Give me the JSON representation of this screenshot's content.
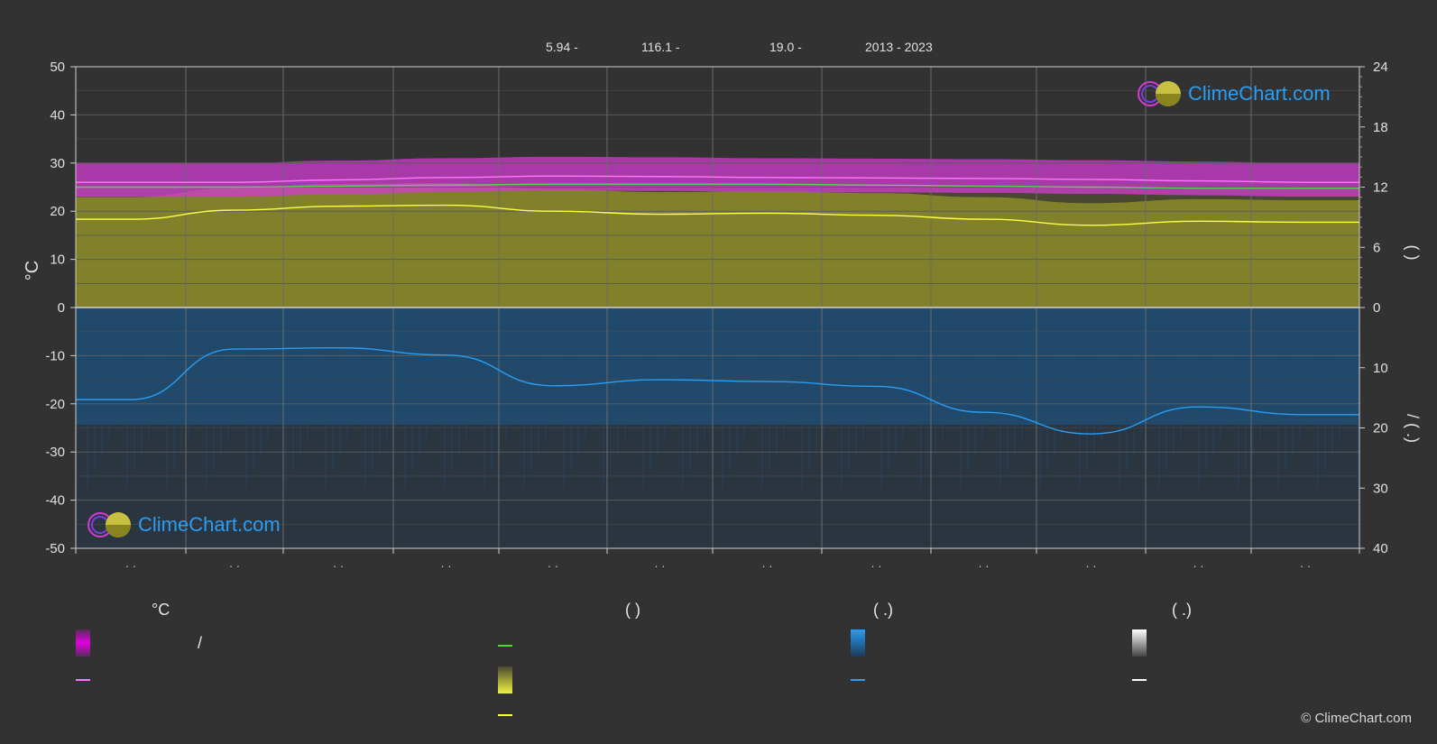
{
  "header": {
    "lat": "5.94 -",
    "lon": "116.1 -",
    "elev": "19.0 -",
    "years": "2013 - 2023"
  },
  "axes": {
    "left_ylabel": "°C",
    "right_top_label": "(   )",
    "right_bottom_label": "/ (   .)",
    "left_ticks": [
      "50",
      "40",
      "30",
      "20",
      "10",
      "0",
      "-10",
      "-20",
      "-30",
      "-40",
      "-50"
    ],
    "right_top_ticks": [
      "24",
      "18",
      "12",
      "6",
      "0"
    ],
    "right_bottom_ticks": [
      "10",
      "20",
      "30",
      "40"
    ],
    "month_labels": [
      "· ·",
      "· ·",
      "· ·",
      "· ·",
      "· ·",
      "· ·",
      "· ·",
      "· ·",
      "· ·",
      "· ·",
      "· ·",
      "· ·"
    ]
  },
  "legend": {
    "col1_head": "°C",
    "col1_row1": "/",
    "col2_head": "(          )",
    "col3_head": "(   .)",
    "col4_head": "(   .)"
  },
  "colors": {
    "background": "#323232",
    "temp_band": "#d23cd2",
    "temp_line": "#ff77ff",
    "daylight_line": "#59d159",
    "sunshine_band": "#8c8c2a",
    "sunshine_line": "#ffff44",
    "rain_band": "#1a5a8c",
    "rain_line": "#2a9df4",
    "snow_line": "#ffffff",
    "grid": "#5a5a5a"
  },
  "logo": {
    "text": "ClimeChart.com"
  },
  "copyright": "© ClimeChart.com",
  "chart_data": {
    "type": "area",
    "x": [
      "1",
      "2",
      "3",
      "4",
      "5",
      "6",
      "7",
      "8",
      "9",
      "10",
      "11",
      "12"
    ],
    "left_ylim": [
      -50,
      50
    ],
    "right_top_ylim": [
      0,
      24
    ],
    "right_bottom_ylim": [
      0,
      40
    ],
    "grid": true,
    "series": [
      {
        "values": [
          26.0,
          26.0,
          26.5,
          27.0,
          27.3,
          27.2,
          27.0,
          26.9,
          26.8,
          26.6,
          26.3,
          26.0
        ]
      },
      {
        "values": [
          12.0,
          12.0,
          12.1,
          12.2,
          12.3,
          12.3,
          12.3,
          12.2,
          12.1,
          12.0,
          11.9,
          11.9
        ]
      },
      {
        "values": [
          8.8,
          9.7,
          10.1,
          10.2,
          9.6,
          9.3,
          9.4,
          9.2,
          8.8,
          8.2,
          8.6,
          8.5
        ]
      },
      {
        "values": [
          15.3,
          6.9,
          6.7,
          7.9,
          13.0,
          12.0,
          12.3,
          13.1,
          17.4,
          21.0,
          16.5,
          17.8
        ]
      }
    ]
  }
}
